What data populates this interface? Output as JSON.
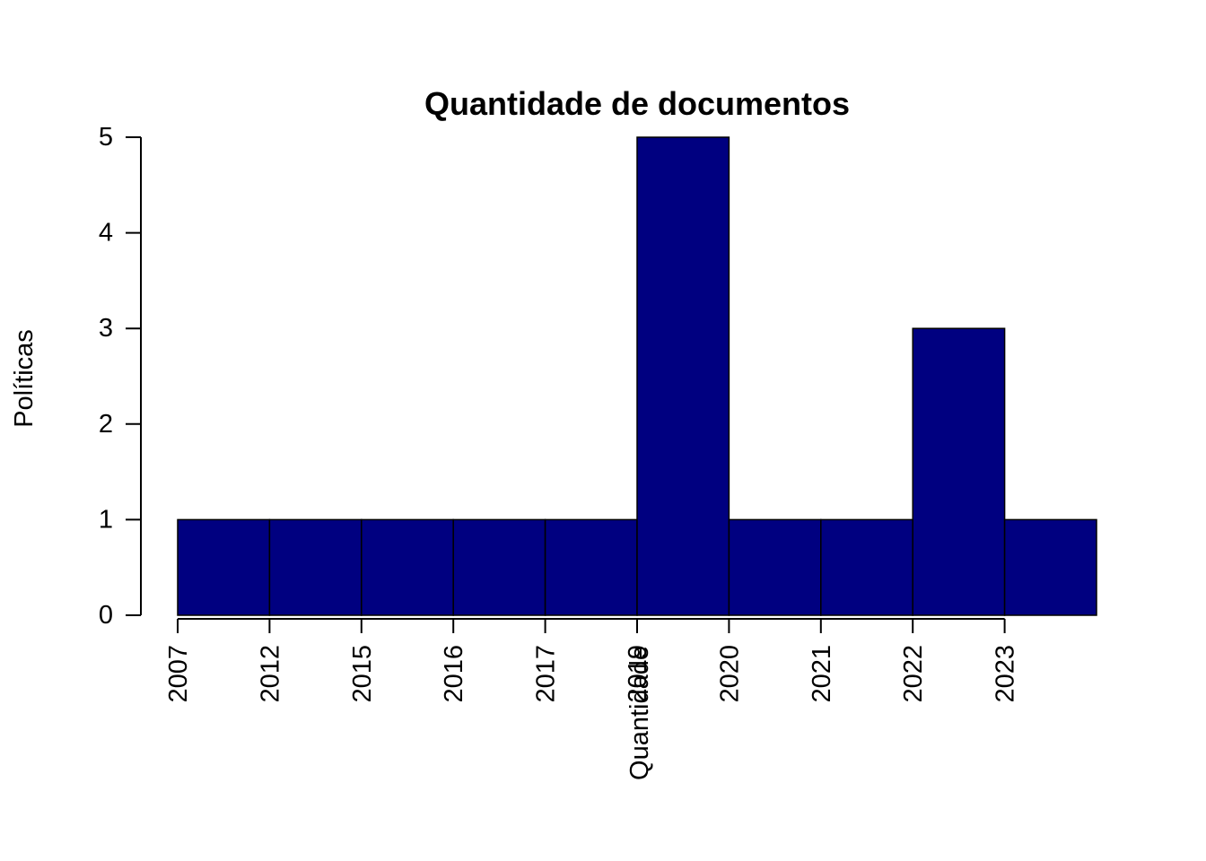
{
  "chart_data": {
    "type": "bar",
    "title": "Quantidade de documentos",
    "xlabel": "Quantidade",
    "ylabel": "Políticas",
    "categories": [
      "2007",
      "2012",
      "2015",
      "2016",
      "2017",
      "2019",
      "2020",
      "2021",
      "2022",
      "2023"
    ],
    "values": [
      1,
      1,
      1,
      1,
      1,
      5,
      1,
      1,
      3,
      1
    ],
    "ylim": [
      0,
      5
    ],
    "yticks": [
      0,
      1,
      2,
      3,
      4,
      5
    ],
    "grid": false,
    "bar_color": "#000080",
    "edge_color": "#000000"
  }
}
